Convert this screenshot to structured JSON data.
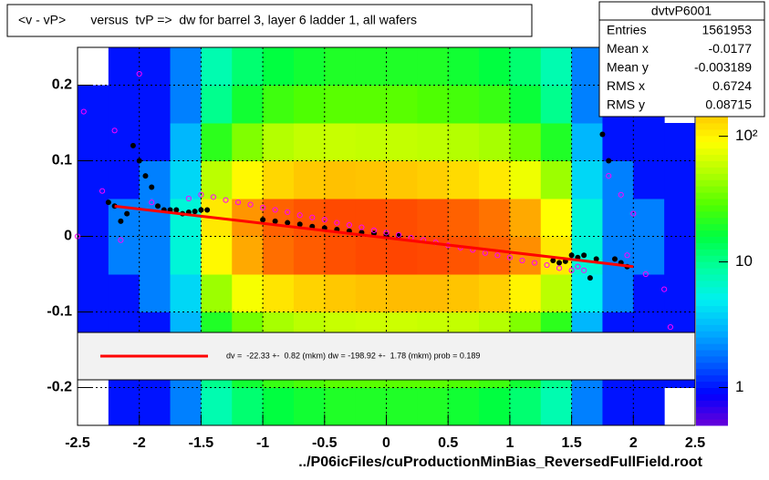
{
  "chart_data": {
    "type": "hist2d",
    "title": "<v - vP>       versus  tvP =>  dw for barrel 3, layer 6 ladder 1, all wafers",
    "x_label": "../P06icFiles/cuProductionMinBias_ReversedFullField.root",
    "xlim": [
      -2.5,
      2.5
    ],
    "ylim": [
      -0.25,
      0.25
    ],
    "xticks": [
      -2.5,
      -2,
      -1.5,
      -1,
      -0.5,
      0,
      0.5,
      1,
      1.5,
      2,
      2.5
    ],
    "yticks": [
      -0.2,
      -0.1,
      0,
      0.1,
      0.2
    ],
    "grid": true,
    "zlog": true,
    "zlim": [
      0.5,
      510
    ],
    "zticks": [
      1,
      10,
      {
        "value": 100,
        "label": "10²"
      }
    ],
    "palette": [
      "#6a00d8",
      "#0000ff",
      "#0060ff",
      "#00b0ff",
      "#00f0f0",
      "#00ffa0",
      "#00ff40",
      "#50ff00",
      "#b0ff00",
      "#ffff00",
      "#ffc000",
      "#ff7000",
      "#ff2000"
    ],
    "z": [
      [
        0,
        1,
        1,
        2,
        8,
        12,
        16,
        18,
        20,
        20,
        20,
        20,
        18,
        16,
        12,
        8,
        2,
        1,
        1,
        0
      ],
      [
        0,
        1,
        1,
        2,
        10,
        18,
        24,
        27,
        30,
        30,
        30,
        30,
        28,
        25,
        18,
        10,
        2,
        1,
        1,
        1
      ],
      [
        1,
        1,
        1,
        3,
        20,
        35,
        48,
        55,
        60,
        62,
        62,
        60,
        58,
        52,
        38,
        22,
        3,
        1,
        1,
        1
      ],
      [
        1,
        1,
        2,
        4,
        45,
        85,
        115,
        135,
        150,
        160,
        165,
        165,
        155,
        140,
        100,
        55,
        5,
        2,
        1,
        1
      ],
      [
        1,
        2,
        2,
        6,
        95,
        190,
        290,
        330,
        360,
        380,
        390,
        380,
        350,
        320,
        230,
        110,
        6,
        2,
        2,
        1
      ],
      [
        1,
        2,
        2,
        6,
        110,
        220,
        320,
        350,
        380,
        380,
        370,
        350,
        320,
        280,
        190,
        90,
        6,
        2,
        2,
        1
      ],
      [
        1,
        1,
        2,
        4,
        55,
        95,
        130,
        150,
        160,
        155,
        150,
        140,
        125,
        110,
        80,
        45,
        4,
        2,
        1,
        1
      ],
      [
        1,
        1,
        1,
        3,
        22,
        38,
        52,
        58,
        60,
        58,
        58,
        56,
        52,
        48,
        34,
        20,
        3,
        1,
        1,
        1
      ],
      [
        1,
        1,
        1,
        2,
        10,
        18,
        25,
        28,
        30,
        30,
        30,
        28,
        26,
        24,
        17,
        10,
        2,
        1,
        1,
        0
      ],
      [
        0,
        1,
        1,
        2,
        8,
        12,
        16,
        18,
        20,
        20,
        20,
        20,
        18,
        16,
        12,
        8,
        2,
        1,
        1,
        0
      ]
    ],
    "series": [
      {
        "kind": "points",
        "color": "#000000",
        "x": [
          -2.25,
          -2.2,
          -2.15,
          -2.1,
          -2.05,
          -2.0,
          -1.95,
          -1.9,
          -1.85,
          -1.8,
          -1.75,
          -1.7,
          -1.65,
          -1.6,
          -1.55,
          -1.5,
          -1.45,
          -1.0,
          -0.9,
          -0.8,
          -0.7,
          -0.6,
          -0.5,
          -0.4,
          -0.3,
          -0.2,
          -0.1,
          0.0,
          0.1,
          1.35,
          1.4,
          1.45,
          1.5,
          1.55,
          1.6,
          1.65,
          1.7,
          1.75,
          1.8,
          1.85,
          1.9,
          1.95
        ],
        "values": [
          0.045,
          0.04,
          0.02,
          0.03,
          0.12,
          0.1,
          0.08,
          0.065,
          0.04,
          0.035,
          0.035,
          0.035,
          0.03,
          0.032,
          0.033,
          0.035,
          0.035,
          0.022,
          0.02,
          0.018,
          0.016,
          0.013,
          0.011,
          0.009,
          0.007,
          0.005,
          0.004,
          0.002,
          0.001,
          -0.032,
          -0.035,
          -0.033,
          -0.025,
          -0.028,
          -0.025,
          -0.055,
          -0.03,
          0.135,
          0.1,
          -0.03,
          -0.035,
          -0.04
        ]
      },
      {
        "kind": "circles",
        "color": "#ff00ff",
        "x": [
          -2.5,
          -2.45,
          -2.3,
          -2.2,
          -2.15,
          -2.0,
          -1.9,
          -1.6,
          -1.5,
          -1.4,
          -1.3,
          -1.2,
          -1.1,
          -1.0,
          -0.9,
          -0.8,
          -0.7,
          -0.6,
          -0.5,
          -0.4,
          -0.3,
          -0.2,
          -0.1,
          0.0,
          0.1,
          0.2,
          0.3,
          0.4,
          0.5,
          0.6,
          0.7,
          0.8,
          0.9,
          1.0,
          1.1,
          1.2,
          1.3,
          1.4,
          1.5,
          1.55,
          1.6,
          1.8,
          1.9,
          1.95,
          2.0,
          2.1,
          2.25,
          2.3
        ],
        "values": [
          0.0,
          0.165,
          0.06,
          0.14,
          -0.005,
          0.215,
          0.045,
          0.05,
          0.055,
          0.052,
          0.048,
          0.045,
          0.042,
          0.038,
          0.035,
          0.032,
          0.028,
          0.025,
          0.022,
          0.018,
          0.015,
          0.012,
          0.008,
          0.005,
          0.002,
          -0.002,
          -0.005,
          -0.008,
          -0.012,
          -0.015,
          -0.018,
          -0.022,
          -0.025,
          -0.028,
          -0.032,
          -0.035,
          -0.038,
          -0.042,
          -0.045,
          -0.04,
          -0.045,
          0.08,
          0.055,
          -0.025,
          0.03,
          -0.05,
          -0.07,
          -0.12
        ]
      },
      {
        "kind": "fit",
        "color": "#ff0000",
        "x": [
          -2.2,
          2.0
        ],
        "values": [
          0.04,
          -0.04
        ]
      }
    ],
    "legend_text": "dv =  -22.33 +-  0.82 (mkm) dw = -198.92 +-  1.78 (mkm) prob = 0.189",
    "stats": {
      "title": "dvtvP6001",
      "rows": [
        [
          "Entries",
          1561953
        ],
        [
          "Mean x",
          -0.0177
        ],
        [
          "Mean y",
          -0.003189
        ],
        [
          "RMS x",
          0.6724
        ],
        [
          "RMS y",
          0.08715
        ]
      ]
    }
  }
}
